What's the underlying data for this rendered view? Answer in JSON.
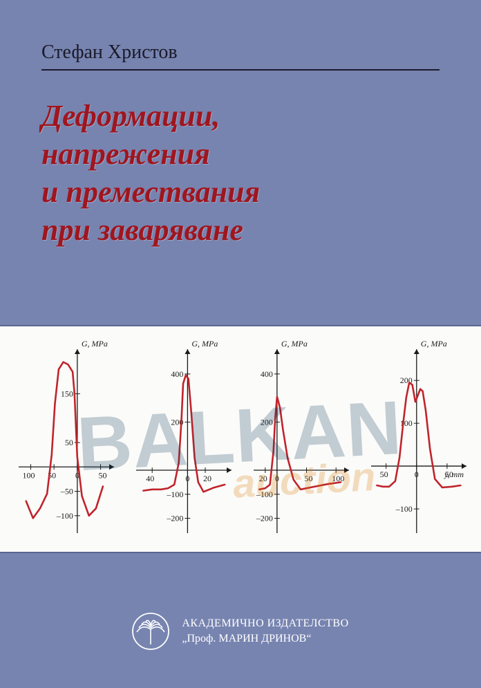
{
  "cover": {
    "background_color": "#7784b0",
    "author": "Стефан Христов",
    "author_color": "#1a1a2a",
    "author_fontsize": 28,
    "title_lines": [
      "Деформации,",
      "напрежения",
      "и премествания",
      "при заваряване"
    ],
    "title_color": "#a0151e",
    "title_fontsize": 44
  },
  "watermark": {
    "main": "BALKAN",
    "sub": "auction",
    "main_color": "#12395e",
    "sub_color": "#d67a00"
  },
  "chart_band": {
    "background_color": "#fbfbf9",
    "axis_color": "#1a1a1a",
    "line_color": "#c0232b",
    "text_color": "#1a1a1a",
    "tick_fontsize": 12,
    "label_fontsize": 12,
    "x_unit_label": "y, mm",
    "charts": [
      {
        "ylabel": "G, MPa",
        "x_ticks": [
          -100,
          -50,
          0,
          50
        ],
        "y_ticks": [
          -100,
          -50,
          50,
          150
        ],
        "xlim": [
          -120,
          70
        ],
        "ylim": [
          -130,
          230
        ],
        "points": [
          [
            -110,
            -70
          ],
          [
            -95,
            -105
          ],
          [
            -80,
            -85
          ],
          [
            -65,
            -55
          ],
          [
            -55,
            25
          ],
          [
            -48,
            130
          ],
          [
            -40,
            200
          ],
          [
            -30,
            215
          ],
          [
            -20,
            210
          ],
          [
            -10,
            195
          ],
          [
            -6,
            150
          ],
          [
            0,
            20
          ],
          [
            10,
            -60
          ],
          [
            25,
            -100
          ],
          [
            40,
            -85
          ],
          [
            55,
            -40
          ]
        ]
      },
      {
        "ylabel": "G, MPa",
        "x_ticks": [
          -40,
          0,
          20
        ],
        "y_ticks": [
          -200,
          -100,
          200,
          400
        ],
        "xlim": [
          -55,
          45
        ],
        "ylim": [
          -250,
          480
        ],
        "points": [
          [
            -50,
            -85
          ],
          [
            -40,
            -80
          ],
          [
            -30,
            -80
          ],
          [
            -22,
            -75
          ],
          [
            -15,
            -60
          ],
          [
            -10,
            30
          ],
          [
            -7,
            200
          ],
          [
            -5,
            360
          ],
          [
            -2,
            395
          ],
          [
            1,
            380
          ],
          [
            4,
            250
          ],
          [
            8,
            50
          ],
          [
            12,
            -50
          ],
          [
            18,
            -90
          ],
          [
            30,
            -72
          ],
          [
            42,
            -60
          ]
        ]
      },
      {
        "ylabel": "G, MPa",
        "x_ticks": [
          -20,
          0,
          50,
          100
        ],
        "y_ticks": [
          -200,
          -100,
          200,
          400
        ],
        "xlim": [
          -35,
          115
        ],
        "ylim": [
          -250,
          480
        ],
        "points": [
          [
            -30,
            -80
          ],
          [
            -20,
            -75
          ],
          [
            -12,
            -60
          ],
          [
            -6,
            80
          ],
          [
            -3,
            220
          ],
          [
            0,
            305
          ],
          [
            5,
            260
          ],
          [
            10,
            170
          ],
          [
            18,
            50
          ],
          [
            28,
            -40
          ],
          [
            40,
            -80
          ],
          [
            60,
            -70
          ],
          [
            85,
            -58
          ],
          [
            108,
            -50
          ]
        ]
      },
      {
        "ylabel": "G, MPa",
        "x_ticks": [
          -50,
          0,
          50
        ],
        "y_ticks": [
          -100,
          100,
          200
        ],
        "xlim": [
          -70,
          75
        ],
        "ylim": [
          -150,
          260
        ],
        "points": [
          [
            -65,
            -45
          ],
          [
            -55,
            -48
          ],
          [
            -45,
            -48
          ],
          [
            -35,
            -35
          ],
          [
            -28,
            20
          ],
          [
            -22,
            100
          ],
          [
            -17,
            160
          ],
          [
            -12,
            195
          ],
          [
            -7,
            190
          ],
          [
            -2,
            150
          ],
          [
            2,
            165
          ],
          [
            6,
            180
          ],
          [
            10,
            175
          ],
          [
            15,
            130
          ],
          [
            22,
            40
          ],
          [
            30,
            -30
          ],
          [
            42,
            -50
          ],
          [
            58,
            -48
          ],
          [
            72,
            -45
          ]
        ],
        "show_x_unit": true
      }
    ]
  },
  "publisher": {
    "line1": "АКАДЕМИЧНО ИЗДАТЕЛСТВО",
    "line2": "„Проф. МАРИН ДРИНОВ“",
    "text_color": "#ffffff",
    "logo_color": "#ffffff"
  }
}
